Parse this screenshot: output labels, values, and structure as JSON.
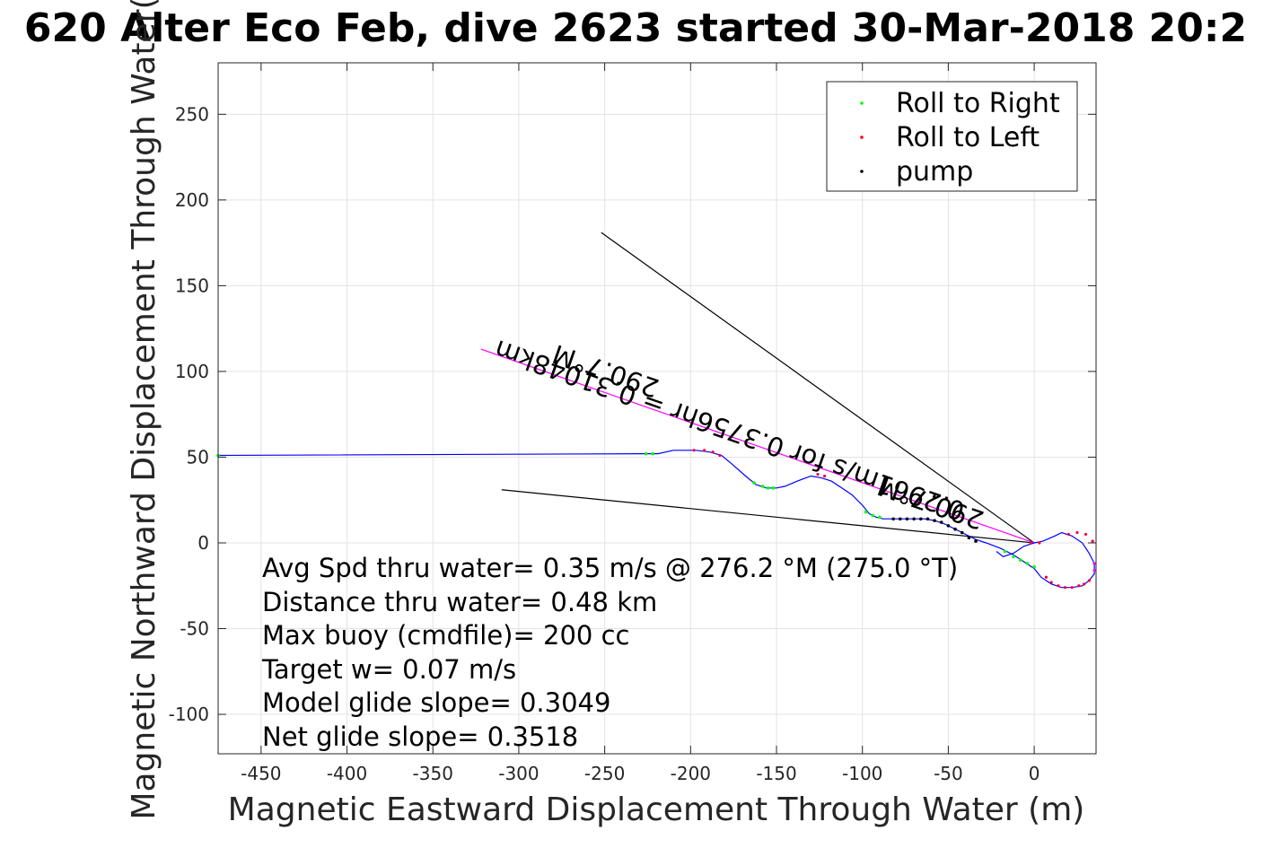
{
  "chart_data": {
    "type": "scatter",
    "title": "620 Alter Eco Feb, dive 2623 started 30-Mar-2018 20:2",
    "xlabel": "Magnetic Eastward Displacement Through Water (m)",
    "ylabel": "Magnetic Northward Displacement Through Water(",
    "xlim": [
      -475,
      36
    ],
    "ylim": [
      -123,
      280
    ],
    "x_ticks": [
      -450,
      -400,
      -350,
      -300,
      -250,
      -200,
      -150,
      -100,
      -50,
      0
    ],
    "y_ticks": [
      -100,
      -50,
      0,
      50,
      100,
      150,
      200,
      250
    ],
    "x_tick_labels": [
      "-450",
      "-400",
      "-350",
      "-300",
      "-250",
      "-200",
      "-150",
      "-100",
      "-50",
      "0"
    ],
    "y_tick_labels": [
      "-100",
      "-50",
      "0",
      "50",
      "100",
      "150",
      "200",
      "250"
    ],
    "grid": true,
    "legend": {
      "position": "top-right",
      "entries": [
        {
          "label": "Roll to Right",
          "color": "#00ff00"
        },
        {
          "label": "Roll to Left",
          "color": "#ff0000"
        },
        {
          "label": "pump",
          "color": "#000000"
        }
      ]
    },
    "track": {
      "color": "#0000ff",
      "x": [
        -475,
        -226,
        -219,
        -210,
        -197,
        -189,
        -182,
        -176,
        -168,
        -162,
        -156,
        -150,
        -145,
        -138,
        -130,
        -124,
        -118,
        -112,
        -106,
        -100,
        -96,
        -92,
        -88,
        -80,
        -72,
        -64,
        -58,
        -52,
        -46,
        -40,
        -34,
        -28,
        -20,
        -12,
        -6,
        0,
        4,
        10,
        16,
        22,
        28,
        32,
        35,
        35,
        32,
        28,
        22,
        16,
        12,
        5,
        0,
        -6,
        -12,
        -18,
        -22
      ],
      "y": [
        51,
        52,
        52,
        54,
        54,
        53,
        51,
        46,
        39,
        34,
        32,
        32,
        33,
        36,
        39,
        38,
        36,
        32,
        28,
        22,
        17,
        15,
        14,
        14,
        14,
        14,
        13,
        11,
        8,
        5,
        2,
        0,
        -3,
        -7,
        -11,
        -15,
        -20,
        -24,
        -26,
        -26,
        -25,
        -22,
        -18,
        -12,
        -6,
        0,
        4,
        6,
        4,
        1,
        0,
        -2,
        -6,
        -8,
        -5
      ]
    },
    "roll_right_points": {
      "x": [
        -475,
        -226,
        -222,
        -163,
        -158,
        -155,
        -152,
        -98,
        -94,
        -90,
        -17,
        -12,
        -8,
        -4,
        0
      ],
      "y": [
        51,
        52,
        52,
        35,
        33,
        32,
        32,
        18,
        16,
        15,
        -5,
        -8,
        -10,
        -12,
        -14
      ]
    },
    "roll_left_points": {
      "x": [
        -198,
        -192,
        -187,
        -183,
        -126,
        -122,
        7,
        10,
        14,
        18,
        22,
        26,
        29,
        32,
        20,
        25,
        30,
        34,
        -2,
        3
      ],
      "y": [
        54,
        54,
        53,
        51,
        40,
        39,
        -20,
        -23,
        -25,
        -26,
        -26,
        -25,
        -24,
        -22,
        5,
        6,
        5,
        1,
        0,
        0
      ],
      "label_points_magenta": {
        "x": [
          -198,
          -192,
          -187,
          -183,
          -126,
          -122,
          7,
          10,
          14,
          18,
          22,
          26,
          29,
          32,
          20,
          25,
          30,
          34,
          -2,
          3,
          35,
          35
        ],
        "y": [
          54,
          54,
          53,
          51,
          40,
          39,
          -20,
          -23,
          -25,
          -26,
          -26,
          -25,
          -24,
          -22,
          5,
          6,
          5,
          1,
          0,
          0,
          -12,
          -16
        ]
      }
    },
    "pump_points": {
      "x": [
        -82,
        -78,
        -74,
        -70,
        -66,
        -62,
        -58,
        -54,
        -50,
        -46,
        -42,
        -38,
        -34
      ],
      "y": [
        14,
        14,
        14,
        14,
        14,
        14,
        13,
        12,
        10,
        8,
        6,
        3,
        1
      ]
    },
    "heading_lines": {
      "color": "#000000",
      "lines": [
        {
          "x": [
            0,
            -252
          ],
          "y": [
            0,
            181
          ]
        },
        {
          "x": [
            0,
            -310
          ],
          "y": [
            0,
            31
          ]
        },
        {
          "x": [
            0,
            -322
          ],
          "y": [
            0,
            113
          ],
          "color": "#ff00ff"
        }
      ]
    },
    "annotations": [
      "Avg Spd thru water=  0.35 m/s @ 276.2 °M (275.0 °T)",
      "Distance thru water=  0.48 km",
      "Max buoy (cmdfile)= 200 cc",
      "Target w= 0.07 m/s",
      "Model glide slope= 0.3049",
      "Net glide slope= 0.3518"
    ],
    "rotated_labels": [
      "290.7°M",
      "0.2961m/s for 0.3756hr = 0.31048km",
      "290.7°M"
    ]
  }
}
